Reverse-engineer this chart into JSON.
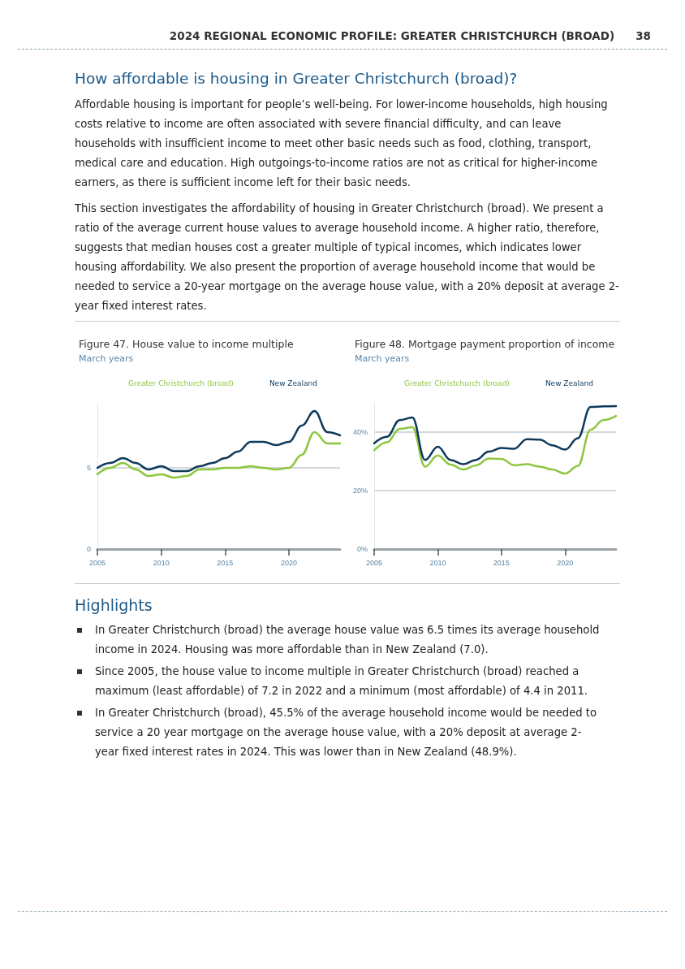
{
  "chart_data": [
    {
      "type": "line",
      "title": "Figure 47. House value to income multiple",
      "subtitle": "March years",
      "annotations": [
        "2024 REGIONAL ECONOMIC PROFILE: GREATER CHRISTCHURCH (BROAD)",
        "38",
        "How affordable is housing in Greater Christchurch (broad)?",
        "Affordable housing is important for people’s well-being. For lower-income households, high housing costs relative to income are often associated with severe financial difficulty, and can leave households with insufficient income to meet other basic needs such as food, clothing, transport, medical care and education. High outgoings-to-income ratios are not as critical for higher-income earners, as there is sufficient income left for their basic needs.",
        "This section investigates the affordability of housing in Greater Christchurch (broad). We present a ratio of the average current house values to average household income. A higher ratio, therefore, suggests that median houses cost a greater multiple of typical incomes, which indicates lower housing affordability. We also present the proportion of average household income that would be needed to service a 20-year mortgage on the average house value, with a 20% deposit at average 2-year fixed interest rates.",
        "Highlights",
        "In Greater Christchurch (broad) the average house value was 6.5 times its average household income in 2024. Housing was more affordable than in New Zealand (7.0).",
        "Since 2005, the house value to income multiple in Greater Christchurch (broad) reached a maximum (least affordable) of 7.2 in 2022 and a minimum (most affordable) of 4.4 in 2011.",
        "In Greater Christchurch (broad), 45.5% of the average household income would be needed to service a 20 year mortgage on the average house value, with a 20% deposit at average 2-year fixed interest rates in 2024. This was lower than in New Zealand (48.9%)."
      ],
      "x": [
        2005,
        2006,
        2007,
        2008,
        2009,
        2010,
        2011,
        2012,
        2013,
        2014,
        2015,
        2016,
        2017,
        2018,
        2019,
        2020,
        2021,
        2022,
        2023,
        2024
      ],
      "series": [
        {
          "name": "Greater Christchurch (broad)",
          "color": "#8dc63f",
          "values": [
            4.6,
            5.0,
            5.3,
            4.9,
            4.5,
            4.6,
            4.4,
            4.5,
            4.9,
            4.9,
            5.0,
            5.0,
            5.1,
            5.0,
            4.9,
            5.0,
            5.8,
            7.2,
            6.5,
            6.5
          ]
        },
        {
          "name": "New Zealand",
          "color": "#0e3a5c",
          "values": [
            5.0,
            5.3,
            5.6,
            5.3,
            4.9,
            5.1,
            4.8,
            4.8,
            5.1,
            5.3,
            5.6,
            6.0,
            6.6,
            6.6,
            6.4,
            6.6,
            7.6,
            8.5,
            7.2,
            7.0
          ]
        }
      ],
      "xlim": [
        2005,
        2024
      ],
      "xticks": [
        2005,
        2010,
        2015,
        2020
      ],
      "ylim": [
        0,
        9
      ],
      "yticks": [
        0,
        5
      ],
      "grid": "y",
      "legend": "top",
      "marker": "none"
    },
    {
      "type": "line",
      "title": "Figure 48. Mortgage payment proportion of income",
      "subtitle": "March years",
      "x": [
        2005,
        2006,
        2007,
        2008,
        2009,
        2010,
        2011,
        2012,
        2013,
        2014,
        2015,
        2016,
        2017,
        2018,
        2019,
        2020,
        2021,
        2022,
        2023,
        2024
      ],
      "series": [
        {
          "name": "Greater Christchurch (broad)",
          "color": "#8dc63f",
          "values": [
            33.8,
            36.5,
            41.1,
            41.7,
            28.2,
            32.0,
            28.9,
            27.2,
            28.6,
            31.0,
            30.8,
            28.7,
            29.0,
            28.2,
            27.2,
            25.8,
            28.4,
            40.8,
            44.1,
            45.5
          ]
        },
        {
          "name": "New Zealand",
          "color": "#0e3a5c",
          "values": [
            36.2,
            38.4,
            44.1,
            45.0,
            30.5,
            35.0,
            30.5,
            29.0,
            30.5,
            33.3,
            34.6,
            34.3,
            37.6,
            37.4,
            35.5,
            34.0,
            37.9,
            48.6,
            48.8,
            48.9
          ]
        }
      ],
      "xlim": [
        2005,
        2024
      ],
      "xticks": [
        2005,
        2010,
        2015,
        2020
      ],
      "ylim": [
        0,
        50
      ],
      "yticks": [
        {
          "value": 0,
          "label": "0%"
        },
        {
          "value": 20,
          "label": "20%"
        },
        {
          "value": 40,
          "label": "40%"
        }
      ],
      "grid": "y",
      "legend": "top",
      "marker": "none"
    }
  ]
}
